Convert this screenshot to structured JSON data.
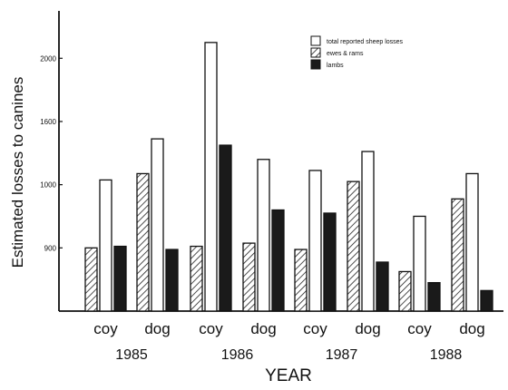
{
  "chart_data": {
    "type": "bar",
    "ylabel": "Estimated losses to canines",
    "xlabel": "YEAR",
    "ylim": [
      300,
      2200
    ],
    "yticks": [
      {
        "value": 900,
        "label": "900"
      },
      {
        "value": 1000,
        "label": "1000"
      },
      {
        "value": 1600,
        "label": "1600"
      },
      {
        "value": 2000,
        "label": "2000"
      }
    ],
    "tick_positions": [
      700,
      1100,
      1500,
      1900
    ],
    "groups": [
      {
        "year": "1985",
        "sub": "coy"
      },
      {
        "year": "1985",
        "sub": "dog"
      },
      {
        "year": "1986",
        "sub": "coy"
      },
      {
        "year": "1986",
        "sub": "dog"
      },
      {
        "year": "1987",
        "sub": "coy"
      },
      {
        "year": "1987",
        "sub": "dog"
      },
      {
        "year": "1988",
        "sub": "coy"
      },
      {
        "year": "1988",
        "sub": "dog"
      }
    ],
    "years": [
      "1985",
      "1986",
      "1987",
      "1988"
    ],
    "series": [
      {
        "name": "ewes & rams",
        "pattern": "hatch",
        "values": [
          700,
          1170,
          710,
          730,
          690,
          1120,
          550,
          1010
        ]
      },
      {
        "name": "total reported sheep losses",
        "pattern": "white",
        "values": [
          1130,
          1390,
          2000,
          1260,
          1190,
          1310,
          900,
          1170
        ]
      },
      {
        "name": "lambs",
        "pattern": "black",
        "values": [
          710,
          690,
          1350,
          940,
          920,
          610,
          480,
          430
        ]
      }
    ],
    "legend_position": "top-right",
    "grid": false
  }
}
